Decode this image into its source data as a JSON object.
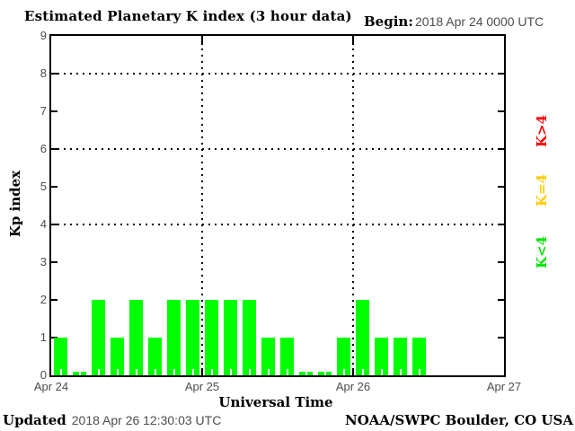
{
  "header": {
    "title": "Estimated Planetary K index (3 hour data)",
    "begin_label": "Begin:",
    "begin_value": "2018 Apr 24 0000 UTC"
  },
  "chart_data": {
    "type": "bar",
    "title": "Estimated Planetary K index (3 hour data)",
    "xlabel": "Universal Time",
    "ylabel": "Kp index",
    "ylim": [
      0,
      9
    ],
    "yticks": [
      0,
      1,
      2,
      3,
      4,
      5,
      6,
      7,
      8,
      9
    ],
    "dotted_h_gridlines_at_kp": [
      4,
      6,
      8
    ],
    "dotted_v_gridlines_at_day_boundaries": [
      "Apr 25",
      "Apr 26"
    ],
    "x_tick_labels": [
      "Apr 24",
      "Apr 25",
      "Apr 26",
      "Apr 27"
    ],
    "interval_hours": 3,
    "slots_per_day": 8,
    "bar_color": "#00ff00",
    "values": [
      1,
      0,
      2,
      1,
      2,
      1,
      2,
      2,
      2,
      2,
      2,
      1,
      1,
      0,
      0,
      1,
      2,
      1,
      1,
      1
    ],
    "days": [
      {
        "date": "Apr 24",
        "kp": [
          1,
          0,
          2,
          1,
          2,
          1,
          2,
          2
        ]
      },
      {
        "date": "Apr 25",
        "kp": [
          2,
          2,
          2,
          1,
          1,
          0,
          0,
          1
        ]
      },
      {
        "date": "Apr 26",
        "kp": [
          2,
          1,
          1,
          1
        ]
      }
    ],
    "legend": [
      {
        "label": "K>4",
        "color": "#ff0000"
      },
      {
        "label": "K=4",
        "color": "#ffcc00"
      },
      {
        "label": "K<4",
        "color": "#00e600"
      }
    ],
    "grid": "dotted at Kp 4/6/8 and at day boundaries",
    "legend_position": "right, rotated"
  },
  "footer": {
    "updated_label": "Updated",
    "updated_value": "2018 Apr 26 12:30:03 UTC",
    "source": "NOAA/SWPC Boulder, CO USA"
  }
}
